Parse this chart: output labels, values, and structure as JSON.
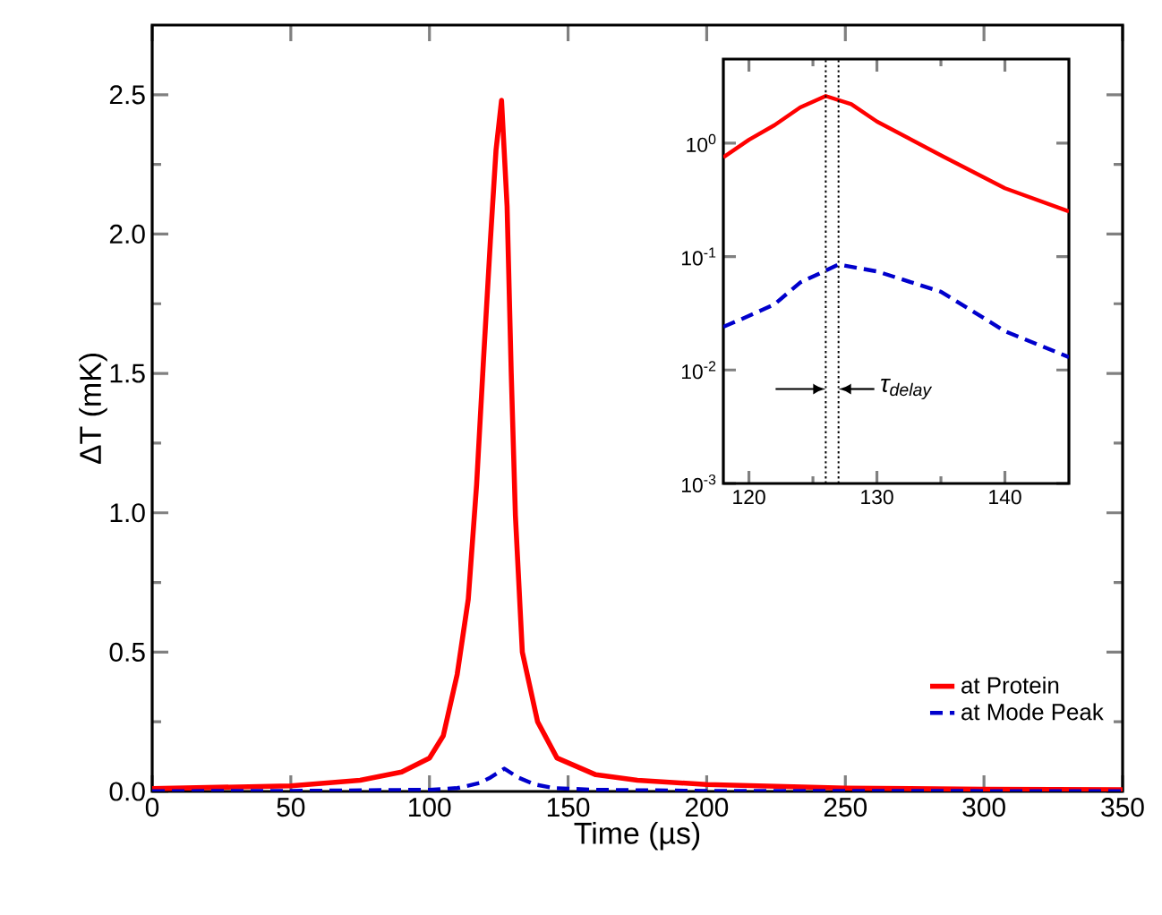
{
  "chart_data": [
    {
      "type": "line",
      "xlabel": "Time (µs)",
      "ylabel": "ΔT (mK)",
      "xlim": [
        0,
        350
      ],
      "ylim": [
        0,
        2.75
      ],
      "xticks": [
        0,
        50,
        100,
        150,
        200,
        250,
        300,
        350
      ],
      "yticks": [
        {
          "value": 0,
          "label": "0.0"
        },
        {
          "value": 0.5,
          "label": "0.5"
        },
        {
          "value": 1,
          "label": "1.0"
        },
        {
          "value": 1.5,
          "label": "1.5"
        },
        {
          "value": 2,
          "label": "2.0"
        },
        {
          "value": 2.5,
          "label": "2.5"
        }
      ],
      "legend": "bottom right",
      "grid": false,
      "series": [
        {
          "name": "at Protein",
          "color": "#ff0000",
          "line_style": "solid",
          "x": [
            0,
            50,
            75,
            90,
            100,
            105,
            110,
            114,
            117,
            119.5,
            122,
            124,
            126,
            128,
            129.5,
            131,
            133.5,
            139,
            146,
            160,
            175,
            200,
            250,
            300,
            350
          ],
          "values": [
            0.01,
            0.02,
            0.04,
            0.07,
            0.12,
            0.2,
            0.42,
            0.69,
            1.1,
            1.55,
            1.98,
            2.3,
            2.48,
            2.1,
            1.5,
            0.99,
            0.5,
            0.25,
            0.12,
            0.06,
            0.04,
            0.025,
            0.012,
            0.008,
            0.006
          ]
        },
        {
          "name": "at Mode Peak",
          "color": "#0000cc",
          "line_style": "dashed",
          "x": [
            0,
            50,
            100,
            110,
            118,
            122,
            127,
            132,
            138,
            145,
            160,
            200,
            350
          ],
          "values": [
            0.001,
            0.002,
            0.006,
            0.012,
            0.03,
            0.05,
            0.082,
            0.05,
            0.025,
            0.012,
            0.006,
            0.002,
            0.001
          ]
        }
      ]
    },
    {
      "type": "line",
      "xlim": [
        118,
        145
      ],
      "ylim": [
        0.001,
        5.5
      ],
      "log": "y",
      "xticks": [
        120,
        130,
        140
      ],
      "yticks": [
        {
          "value": 0.001,
          "label": "10$^{-3}$"
        },
        {
          "value": 0.01,
          "label": "10$^{-2}$"
        },
        {
          "value": 0.1,
          "label": "10$^{-1}$"
        },
        {
          "value": 1,
          "label": "10$^{0}$"
        }
      ],
      "grid": false,
      "ref_lines": [
        {
          "axis": "x",
          "value": 126,
          "color": "#000000",
          "line_style": "dotted"
        },
        {
          "axis": "x",
          "value": 127,
          "color": "#000000",
          "line_style": "dotted"
        }
      ],
      "annotations": [
        {
          "text": "τ$_{delay}$",
          "x": 127,
          "y": 0.0068
        }
      ],
      "series": [
        {
          "color": "#ff0000",
          "line_style": "solid",
          "x": [
            118,
            120,
            122,
            124,
            126,
            128,
            130,
            135,
            140,
            145
          ],
          "values": [
            0.75,
            1.07,
            1.44,
            2.06,
            2.6,
            2.2,
            1.55,
            0.78,
            0.4,
            0.25
          ]
        },
        {
          "color": "#0000cc",
          "line_style": "dashed",
          "x": [
            118,
            120,
            122,
            124,
            127,
            130,
            135,
            140,
            145
          ],
          "values": [
            0.024,
            0.03,
            0.038,
            0.059,
            0.085,
            0.074,
            0.049,
            0.022,
            0.013
          ]
        }
      ]
    }
  ]
}
